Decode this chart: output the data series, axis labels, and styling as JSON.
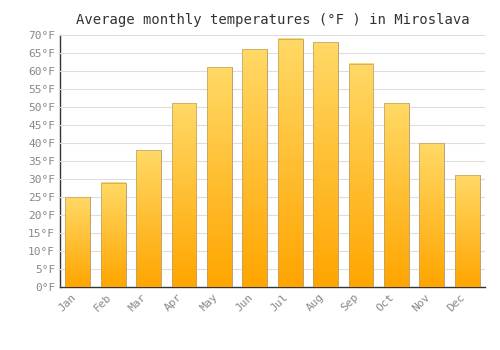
{
  "title": "Average monthly temperatures (°F ) in Miroslava",
  "months": [
    "Jan",
    "Feb",
    "Mar",
    "Apr",
    "May",
    "Jun",
    "Jul",
    "Aug",
    "Sep",
    "Oct",
    "Nov",
    "Dec"
  ],
  "values": [
    25,
    29,
    38,
    51,
    61,
    66,
    69,
    68,
    62,
    51,
    40,
    31
  ],
  "bar_color_bottom": "#FFA500",
  "bar_color_top": "#FFD966",
  "bar_edge_color": "#b8a070",
  "ylim": [
    0,
    70
  ],
  "yticks": [
    0,
    5,
    10,
    15,
    20,
    25,
    30,
    35,
    40,
    45,
    50,
    55,
    60,
    65,
    70
  ],
  "ytick_labels": [
    "0°F",
    "5°F",
    "10°F",
    "15°F",
    "20°F",
    "25°F",
    "30°F",
    "35°F",
    "40°F",
    "45°F",
    "50°F",
    "55°F",
    "60°F",
    "65°F",
    "70°F"
  ],
  "background_color": "#ffffff",
  "grid_color": "#dddddd",
  "title_fontsize": 10,
  "tick_fontsize": 8,
  "tick_color": "#888888",
  "axis_color": "#333333",
  "bar_width": 0.7
}
